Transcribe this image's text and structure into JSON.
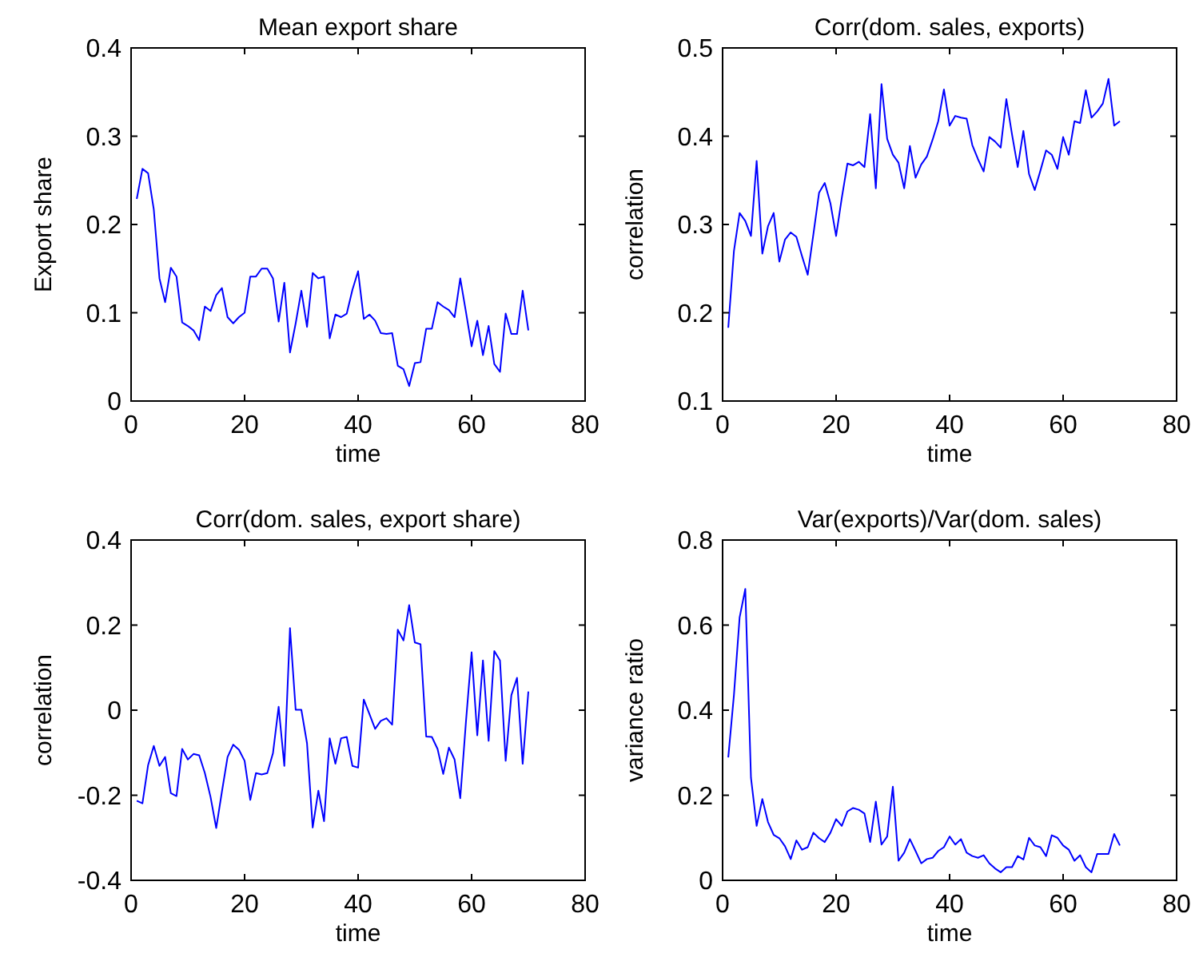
{
  "chart_data": [
    {
      "type": "line",
      "title": "Mean export share",
      "xlabel": "time",
      "ylabel": "Export share",
      "xlim": [
        0,
        80
      ],
      "xticks": [
        0,
        20,
        40,
        60,
        80
      ],
      "ylim": [
        0,
        0.4
      ],
      "yticks": [
        0,
        0.1,
        0.2,
        0.3,
        0.4
      ],
      "x": [
        1,
        2,
        3,
        4,
        5,
        6,
        7,
        8,
        9,
        10,
        11,
        12,
        13,
        14,
        15,
        16,
        17,
        18,
        19,
        20,
        21,
        22,
        23,
        24,
        25,
        26,
        27,
        28,
        29,
        30,
        31,
        32,
        33,
        34,
        35,
        36,
        37,
        38,
        39,
        40,
        41,
        42,
        43,
        44,
        45,
        46,
        47,
        48,
        49,
        50,
        51,
        52,
        53,
        54,
        55,
        56,
        57,
        58,
        59,
        60,
        61,
        62,
        63,
        64,
        65,
        66,
        67,
        68,
        69,
        70
      ],
      "series": [
        {
          "color": "#0000ff",
          "values": [
            0.229,
            0.263,
            0.258,
            0.217,
            0.139,
            0.112,
            0.151,
            0.141,
            0.089,
            0.085,
            0.08,
            0.069,
            0.107,
            0.102,
            0.12,
            0.128,
            0.095,
            0.088,
            0.095,
            0.1,
            0.141,
            0.141,
            0.15,
            0.15,
            0.139,
            0.09,
            0.134,
            0.055,
            0.088,
            0.125,
            0.084,
            0.145,
            0.139,
            0.141,
            0.071,
            0.098,
            0.095,
            0.099,
            0.126,
            0.147,
            0.093,
            0.098,
            0.091,
            0.077,
            0.076,
            0.077,
            0.04,
            0.036,
            0.017,
            0.043,
            0.044,
            0.082,
            0.082,
            0.112,
            0.107,
            0.103,
            0.095,
            0.139,
            0.101,
            0.062,
            0.091,
            0.052,
            0.085,
            0.042,
            0.033,
            0.099,
            0.076,
            0.076,
            0.125,
            0.08
          ]
        }
      ]
    },
    {
      "type": "line",
      "title": "Corr(dom. sales, exports)",
      "xlabel": "time",
      "ylabel": "correlation",
      "xlim": [
        0,
        80
      ],
      "xticks": [
        0,
        20,
        40,
        60,
        80
      ],
      "ylim": [
        0.1,
        0.5
      ],
      "yticks": [
        0.1,
        0.2,
        0.3,
        0.4,
        0.5
      ],
      "x": [
        1,
        2,
        3,
        4,
        5,
        6,
        7,
        8,
        9,
        10,
        11,
        12,
        13,
        14,
        15,
        16,
        17,
        18,
        19,
        20,
        21,
        22,
        23,
        24,
        25,
        26,
        27,
        28,
        29,
        30,
        31,
        32,
        33,
        34,
        35,
        36,
        37,
        38,
        39,
        40,
        41,
        42,
        43,
        44,
        45,
        46,
        47,
        48,
        49,
        50,
        51,
        52,
        53,
        54,
        55,
        56,
        57,
        58,
        59,
        60,
        61,
        62,
        63,
        64,
        65,
        66,
        67,
        68,
        69,
        70
      ],
      "series": [
        {
          "color": "#0000ff",
          "values": [
            0.183,
            0.27,
            0.313,
            0.304,
            0.287,
            0.372,
            0.267,
            0.298,
            0.313,
            0.258,
            0.283,
            0.291,
            0.286,
            0.264,
            0.243,
            0.289,
            0.336,
            0.347,
            0.324,
            0.287,
            0.33,
            0.369,
            0.367,
            0.371,
            0.365,
            0.425,
            0.341,
            0.459,
            0.397,
            0.379,
            0.37,
            0.341,
            0.389,
            0.353,
            0.368,
            0.377,
            0.396,
            0.417,
            0.453,
            0.412,
            0.423,
            0.421,
            0.42,
            0.39,
            0.374,
            0.36,
            0.399,
            0.394,
            0.387,
            0.442,
            0.402,
            0.365,
            0.406,
            0.357,
            0.339,
            0.361,
            0.384,
            0.379,
            0.363,
            0.399,
            0.379,
            0.417,
            0.415,
            0.452,
            0.421,
            0.428,
            0.437,
            0.465,
            0.412,
            0.417
          ]
        }
      ]
    },
    {
      "type": "line",
      "title": "Corr(dom. sales, export share)",
      "xlabel": "time",
      "ylabel": "correlation",
      "xlim": [
        0,
        80
      ],
      "xticks": [
        0,
        20,
        40,
        60,
        80
      ],
      "ylim": [
        -0.4,
        0.4
      ],
      "yticks": [
        -0.4,
        -0.2,
        0,
        0.2,
        0.4
      ],
      "x": [
        1,
        2,
        3,
        4,
        5,
        6,
        7,
        8,
        9,
        10,
        11,
        12,
        13,
        14,
        15,
        16,
        17,
        18,
        19,
        20,
        21,
        22,
        23,
        24,
        25,
        26,
        27,
        28,
        29,
        30,
        31,
        32,
        33,
        34,
        35,
        36,
        37,
        38,
        39,
        40,
        41,
        42,
        43,
        44,
        45,
        46,
        47,
        48,
        49,
        50,
        51,
        52,
        53,
        54,
        55,
        56,
        57,
        58,
        59,
        60,
        61,
        62,
        63,
        64,
        65,
        66,
        67,
        68,
        69,
        70
      ],
      "series": [
        {
          "color": "#0000ff",
          "values": [
            -0.213,
            -0.219,
            -0.129,
            -0.084,
            -0.131,
            -0.11,
            -0.195,
            -0.202,
            -0.091,
            -0.116,
            -0.103,
            -0.106,
            -0.148,
            -0.204,
            -0.277,
            -0.192,
            -0.11,
            -0.081,
            -0.093,
            -0.119,
            -0.211,
            -0.148,
            -0.151,
            -0.148,
            -0.101,
            0.008,
            -0.131,
            0.193,
            0.001,
            0.001,
            -0.078,
            -0.276,
            -0.189,
            -0.261,
            -0.066,
            -0.126,
            -0.066,
            -0.063,
            -0.131,
            -0.135,
            0.025,
            -0.009,
            -0.044,
            -0.025,
            -0.019,
            -0.034,
            0.189,
            0.164,
            0.247,
            0.159,
            0.155,
            -0.062,
            -0.063,
            -0.091,
            -0.15,
            -0.088,
            -0.116,
            -0.207,
            -0.028,
            0.136,
            -0.059,
            0.117,
            -0.072,
            0.139,
            0.117,
            -0.119,
            0.035,
            0.076,
            -0.126,
            0.044
          ]
        }
      ]
    },
    {
      "type": "line",
      "title": "Var(exports)/Var(dom. sales)",
      "xlabel": "time",
      "ylabel": "variance ratio",
      "xlim": [
        0,
        80
      ],
      "xticks": [
        0,
        20,
        40,
        60,
        80
      ],
      "ylim": [
        0,
        0.8
      ],
      "yticks": [
        0,
        0.2,
        0.4,
        0.6,
        0.8
      ],
      "x": [
        1,
        2,
        3,
        4,
        5,
        6,
        7,
        8,
        9,
        10,
        11,
        12,
        13,
        14,
        15,
        16,
        17,
        18,
        19,
        20,
        21,
        22,
        23,
        24,
        25,
        26,
        27,
        28,
        29,
        30,
        31,
        32,
        33,
        34,
        35,
        36,
        37,
        38,
        39,
        40,
        41,
        42,
        43,
        44,
        45,
        46,
        47,
        48,
        49,
        50,
        51,
        52,
        53,
        54,
        55,
        56,
        57,
        58,
        59,
        60,
        61,
        62,
        63,
        64,
        65,
        66,
        67,
        68,
        69,
        70
      ],
      "series": [
        {
          "color": "#0000ff",
          "values": [
            0.289,
            0.436,
            0.618,
            0.685,
            0.241,
            0.128,
            0.191,
            0.137,
            0.107,
            0.099,
            0.08,
            0.05,
            0.094,
            0.072,
            0.078,
            0.112,
            0.099,
            0.09,
            0.112,
            0.144,
            0.128,
            0.162,
            0.17,
            0.166,
            0.157,
            0.09,
            0.185,
            0.084,
            0.103,
            0.22,
            0.046,
            0.065,
            0.097,
            0.069,
            0.04,
            0.05,
            0.053,
            0.069,
            0.078,
            0.103,
            0.084,
            0.097,
            0.065,
            0.057,
            0.053,
            0.059,
            0.04,
            0.028,
            0.019,
            0.031,
            0.031,
            0.057,
            0.049,
            0.1,
            0.082,
            0.078,
            0.057,
            0.106,
            0.1,
            0.082,
            0.072,
            0.046,
            0.059,
            0.031,
            0.019,
            0.062,
            0.062,
            0.062,
            0.109,
            0.082
          ]
        }
      ]
    }
  ]
}
